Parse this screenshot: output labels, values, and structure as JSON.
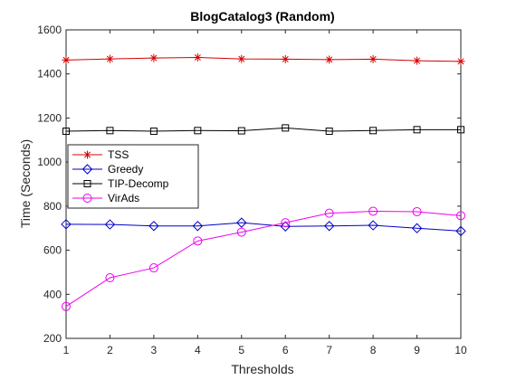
{
  "chart_data": {
    "type": "line",
    "title": "BlogCatalog3 (Random)",
    "xlabel": "Thresholds",
    "ylabel": "Time (Seconds)",
    "x": [
      1,
      2,
      3,
      4,
      5,
      6,
      7,
      8,
      9,
      10
    ],
    "xlim": [
      1,
      10
    ],
    "ylim": [
      200,
      1600
    ],
    "xticks": [
      "1",
      "2",
      "3",
      "4",
      "5",
      "6",
      "7",
      "8",
      "9",
      "10"
    ],
    "yticks": [
      "200",
      "400",
      "600",
      "800",
      "1000",
      "1200",
      "1400",
      "1600"
    ],
    "grid": false,
    "legend_position": "left",
    "series": [
      {
        "name": "TSS",
        "color": "#d40000",
        "marker": "asterisk",
        "values": [
          1463,
          1468,
          1472,
          1475,
          1468,
          1467,
          1465,
          1467,
          1460,
          1457
        ]
      },
      {
        "name": "Greedy",
        "color": "#0000cc",
        "marker": "diamond",
        "values": [
          718,
          717,
          710,
          710,
          725,
          708,
          710,
          713,
          700,
          687
        ]
      },
      {
        "name": "TIP-Decomp",
        "color": "#000000",
        "marker": "square",
        "values": [
          1140,
          1143,
          1140,
          1143,
          1142,
          1155,
          1140,
          1143,
          1147,
          1147
        ]
      },
      {
        "name": "VirAds",
        "color": "#ee00ee",
        "marker": "circle",
        "values": [
          345,
          475,
          520,
          642,
          682,
          725,
          768,
          777,
          775,
          757
        ]
      }
    ]
  }
}
